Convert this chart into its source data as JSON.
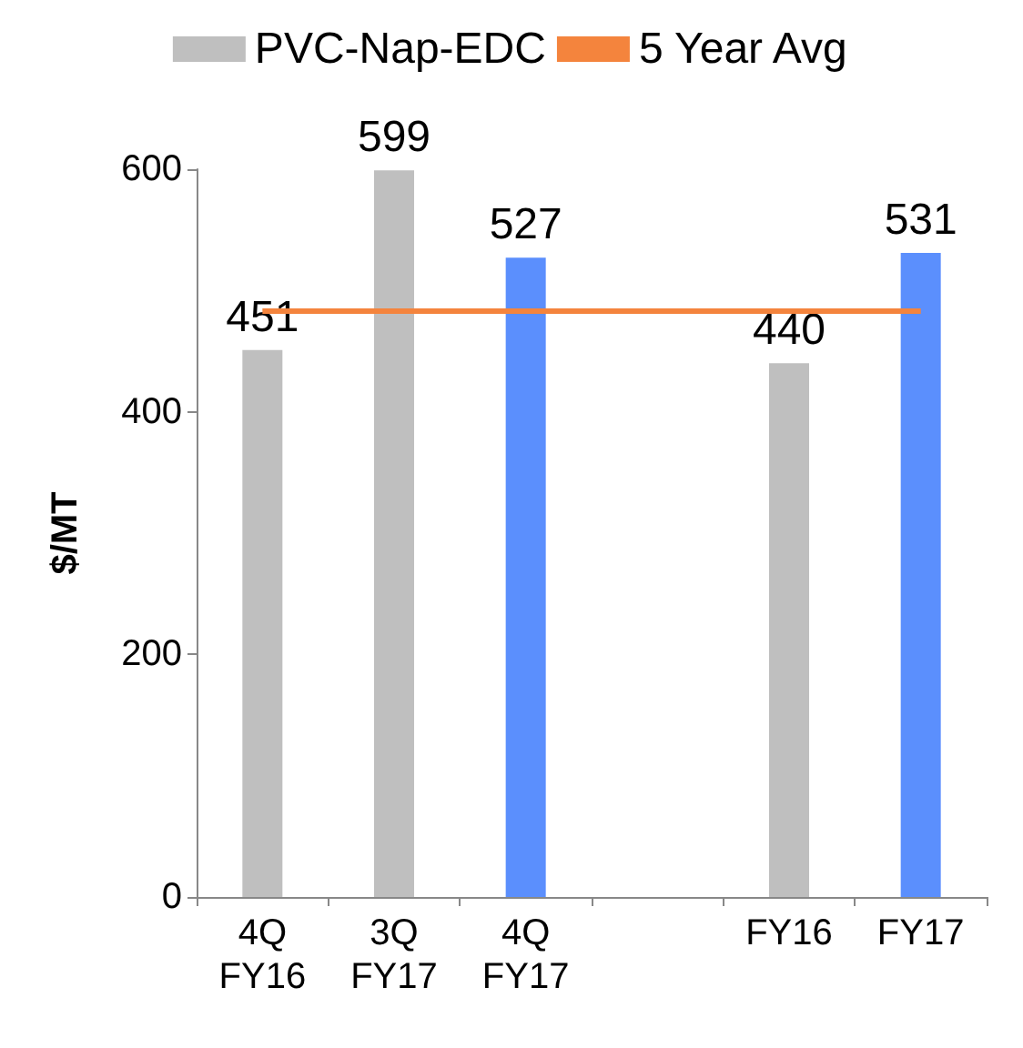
{
  "chart_data": {
    "type": "bar",
    "ylabel": "$/MT",
    "categories": [
      "4Q\nFY16",
      "3Q\nFY17",
      "4Q\nFY17",
      null,
      "FY16",
      "FY17"
    ],
    "series": [
      {
        "name": "PVC-Nap-EDC",
        "values": [
          451,
          599,
          527,
          null,
          440,
          531
        ],
        "value_labels": [
          "451",
          "599",
          "527",
          null,
          "440",
          "531"
        ],
        "colors": [
          "#bfbfbf",
          "#bfbfbf",
          "#5b8ffd",
          null,
          "#bfbfbf",
          "#5b8ffd"
        ],
        "color": "#bfbfbf"
      },
      {
        "name": "5 Year Avg",
        "type": "line",
        "color": "#f4843d",
        "values": [
          483,
          483,
          483,
          483,
          483,
          483
        ]
      }
    ],
    "ylim": [
      0,
      600
    ],
    "yticks": [
      0,
      200,
      400,
      600
    ],
    "legend": "top",
    "grid": false,
    "marker": "none"
  }
}
